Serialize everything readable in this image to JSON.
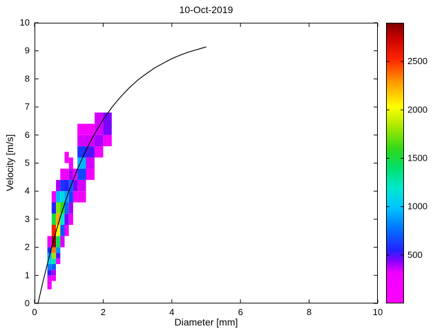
{
  "chart_data": {
    "type": "heatmap",
    "title": "10-Oct-2019",
    "xlabel": "Diameter [mm]",
    "ylabel": "Velocity [m/s]",
    "xlim": [
      0,
      10
    ],
    "ylim": [
      0,
      10
    ],
    "xticks": [
      0,
      2,
      4,
      6,
      8,
      10
    ],
    "yticks": [
      0,
      1,
      2,
      3,
      4,
      5,
      6,
      7,
      8,
      9,
      10
    ],
    "grid": false,
    "colorbar": {
      "position": "right",
      "min": 0,
      "max": 2900,
      "ticks": [
        500,
        1000,
        1500,
        2000,
        2500
      ]
    },
    "colormap": [
      [
        0.0,
        "#ff00ff"
      ],
      [
        0.11,
        "#f000ff"
      ],
      [
        0.15,
        "#8800ff"
      ],
      [
        0.19,
        "#2222ff"
      ],
      [
        0.27,
        "#0077ff"
      ],
      [
        0.34,
        "#00c3ff"
      ],
      [
        0.41,
        "#00e8d0"
      ],
      [
        0.48,
        "#00e070"
      ],
      [
        0.55,
        "#30d818"
      ],
      [
        0.63,
        "#a8e800"
      ],
      [
        0.7,
        "#ffff00"
      ],
      [
        0.79,
        "#ff9800"
      ],
      [
        0.87,
        "#ff2400"
      ],
      [
        0.95,
        "#c40000"
      ],
      [
        1.0,
        "#7a0000"
      ]
    ],
    "cells_format": [
      "diameter_mm",
      "velocity_ms",
      "width_mm",
      "height_ms",
      "count"
    ],
    "cells": [
      [
        0.375,
        0.5,
        0.125,
        0.2,
        250
      ],
      [
        0.375,
        0.7,
        0.125,
        0.2,
        300
      ],
      [
        0.375,
        0.9,
        0.125,
        0.1,
        350
      ],
      [
        0.375,
        1.0,
        0.125,
        0.2,
        550
      ],
      [
        0.375,
        1.2,
        0.125,
        0.2,
        800
      ],
      [
        0.375,
        1.4,
        0.125,
        0.2,
        1050
      ],
      [
        0.375,
        1.6,
        0.125,
        0.2,
        900
      ],
      [
        0.375,
        1.8,
        0.125,
        0.2,
        600
      ],
      [
        0.375,
        2.0,
        0.125,
        0.4,
        300
      ],
      [
        0.5,
        0.8,
        0.125,
        0.2,
        250
      ],
      [
        0.5,
        1.0,
        0.125,
        0.2,
        400
      ],
      [
        0.5,
        1.2,
        0.125,
        0.2,
        700
      ],
      [
        0.5,
        1.4,
        0.125,
        0.2,
        1250
      ],
      [
        0.5,
        1.6,
        0.125,
        0.2,
        1800
      ],
      [
        0.5,
        1.8,
        0.125,
        0.2,
        2350
      ],
      [
        0.5,
        2.0,
        0.125,
        0.4,
        2850
      ],
      [
        0.5,
        2.4,
        0.125,
        0.4,
        2550
      ],
      [
        0.5,
        2.8,
        0.125,
        0.4,
        1500
      ],
      [
        0.5,
        3.2,
        0.125,
        0.4,
        550
      ],
      [
        0.5,
        3.6,
        0.125,
        0.4,
        300
      ],
      [
        0.625,
        1.4,
        0.125,
        0.2,
        300
      ],
      [
        0.625,
        1.6,
        0.125,
        0.2,
        500
      ],
      [
        0.625,
        1.8,
        0.125,
        0.2,
        850
      ],
      [
        0.625,
        2.0,
        0.125,
        0.4,
        1450
      ],
      [
        0.625,
        2.4,
        0.125,
        0.4,
        2000
      ],
      [
        0.625,
        2.8,
        0.125,
        0.4,
        2250
      ],
      [
        0.625,
        3.2,
        0.125,
        0.4,
        1750
      ],
      [
        0.625,
        3.6,
        0.125,
        0.4,
        950
      ],
      [
        0.625,
        4.0,
        0.125,
        0.4,
        400
      ],
      [
        0.75,
        2.0,
        0.125,
        0.4,
        350
      ],
      [
        0.75,
        2.4,
        0.125,
        0.4,
        700
      ],
      [
        0.75,
        2.8,
        0.125,
        0.4,
        1200
      ],
      [
        0.75,
        3.2,
        0.125,
        0.4,
        1600
      ],
      [
        0.75,
        3.6,
        0.125,
        0.4,
        1100
      ],
      [
        0.75,
        4.0,
        0.125,
        0.4,
        600
      ],
      [
        0.75,
        4.4,
        0.125,
        0.4,
        300
      ],
      [
        0.875,
        2.4,
        0.125,
        0.4,
        250
      ],
      [
        0.875,
        2.8,
        0.125,
        0.4,
        450
      ],
      [
        0.875,
        3.2,
        0.125,
        0.4,
        750
      ],
      [
        0.875,
        3.6,
        0.125,
        0.4,
        900
      ],
      [
        0.875,
        4.0,
        0.125,
        0.4,
        550
      ],
      [
        0.875,
        4.4,
        0.125,
        0.4,
        300
      ],
      [
        0.875,
        5.0,
        0.125,
        0.4,
        250
      ],
      [
        1.0,
        2.8,
        0.125,
        0.4,
        250
      ],
      [
        1.0,
        3.2,
        0.125,
        0.4,
        400
      ],
      [
        1.0,
        3.6,
        0.125,
        0.4,
        650
      ],
      [
        1.0,
        4.0,
        0.125,
        0.4,
        700
      ],
      [
        1.0,
        4.4,
        0.125,
        0.4,
        400
      ],
      [
        1.0,
        4.8,
        0.125,
        0.4,
        250
      ],
      [
        1.125,
        3.6,
        0.125,
        0.4,
        300
      ],
      [
        1.125,
        4.0,
        0.125,
        0.4,
        450
      ],
      [
        1.125,
        4.4,
        0.125,
        0.4,
        300
      ],
      [
        1.25,
        3.6,
        0.25,
        0.4,
        250
      ],
      [
        1.25,
        4.0,
        0.25,
        0.4,
        350
      ],
      [
        1.25,
        4.4,
        0.25,
        0.4,
        650
      ],
      [
        1.25,
        4.8,
        0.25,
        0.4,
        950
      ],
      [
        1.25,
        5.2,
        0.25,
        0.4,
        600
      ],
      [
        1.25,
        5.6,
        0.25,
        0.4,
        350
      ],
      [
        1.25,
        6.0,
        0.25,
        0.4,
        250
      ],
      [
        1.5,
        4.4,
        0.25,
        0.4,
        250
      ],
      [
        1.5,
        4.8,
        0.25,
        0.4,
        350
      ],
      [
        1.5,
        5.2,
        0.25,
        0.4,
        500
      ],
      [
        1.5,
        5.6,
        0.25,
        0.4,
        350
      ],
      [
        1.5,
        6.0,
        0.25,
        0.4,
        250
      ],
      [
        1.75,
        5.2,
        0.25,
        0.4,
        250
      ],
      [
        1.75,
        5.6,
        0.25,
        0.4,
        400
      ],
      [
        1.75,
        6.0,
        0.25,
        0.8,
        350
      ],
      [
        2.0,
        5.6,
        0.25,
        0.4,
        250
      ],
      [
        2.0,
        6.0,
        0.25,
        0.8,
        450
      ]
    ],
    "curve": {
      "name": "terminal-velocity-curve",
      "color": "#000000",
      "points": [
        [
          0.1,
          0.0
        ],
        [
          0.25,
          0.79
        ],
        [
          0.5,
          2.02
        ],
        [
          0.75,
          3.08
        ],
        [
          1.0,
          4.0
        ],
        [
          1.25,
          4.78
        ],
        [
          1.5,
          5.46
        ],
        [
          1.75,
          6.05
        ],
        [
          2.0,
          6.55
        ],
        [
          2.25,
          6.98
        ],
        [
          2.5,
          7.35
        ],
        [
          2.75,
          7.67
        ],
        [
          3.0,
          7.95
        ],
        [
          3.25,
          8.18
        ],
        [
          3.5,
          8.39
        ],
        [
          3.75,
          8.56
        ],
        [
          4.0,
          8.72
        ],
        [
          4.25,
          8.85
        ],
        [
          4.5,
          8.96
        ],
        [
          4.75,
          9.05
        ],
        [
          5.0,
          9.14
        ]
      ]
    }
  }
}
